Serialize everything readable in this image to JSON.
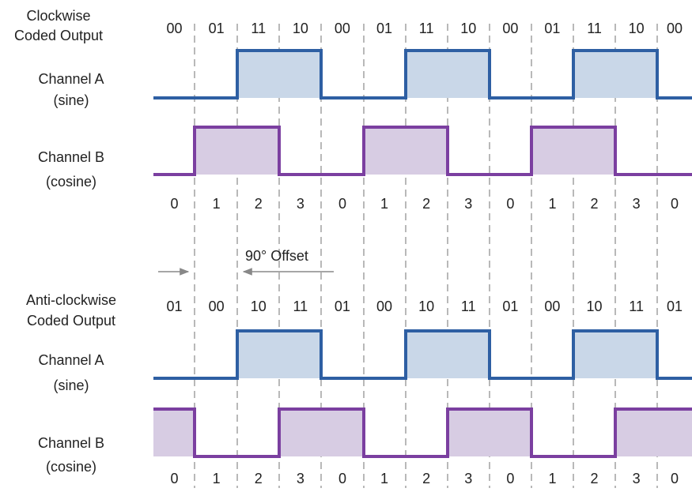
{
  "sections": [
    {
      "title": [
        "Clockwise",
        "Coded Output"
      ],
      "codes": [
        "00",
        "01",
        "11",
        "10",
        "00",
        "01",
        "11",
        "10",
        "00",
        "01",
        "11",
        "10",
        "00"
      ],
      "channel_a": {
        "label": [
          "Channel A",
          "(sine)"
        ],
        "pattern": [
          0,
          0,
          1,
          1,
          0,
          0,
          1,
          1,
          0,
          0,
          1,
          1,
          0
        ]
      },
      "channel_b": {
        "label": [
          "Channel B",
          "(cosine)"
        ],
        "pattern": [
          0,
          1,
          1,
          0,
          0,
          1,
          1,
          0,
          0,
          1,
          1,
          0,
          0
        ]
      },
      "steps": [
        "0",
        "1",
        "2",
        "3",
        "0",
        "1",
        "2",
        "3",
        "0",
        "1",
        "2",
        "3",
        "0"
      ]
    },
    {
      "title": [
        "Anti-clockwise",
        "Coded Output"
      ],
      "codes": [
        "01",
        "00",
        "10",
        "11",
        "01",
        "00",
        "10",
        "11",
        "01",
        "00",
        "10",
        "11",
        "01"
      ],
      "channel_a": {
        "label": [
          "Channel A",
          "(sine)"
        ],
        "pattern": [
          0,
          0,
          1,
          1,
          0,
          0,
          1,
          1,
          0,
          0,
          1,
          1,
          0
        ]
      },
      "channel_b": {
        "label": [
          "Channel B",
          "(cosine)"
        ],
        "pattern": [
          1,
          0,
          0,
          1,
          1,
          0,
          0,
          1,
          1,
          0,
          0,
          1,
          1
        ]
      },
      "steps": [
        "0",
        "1",
        "2",
        "3",
        "0",
        "1",
        "2",
        "3",
        "0",
        "1",
        "2",
        "3",
        "0"
      ]
    }
  ],
  "offset_label": "90° Offset",
  "colors": {
    "channel_a_stroke": "#2e5fa3",
    "channel_a_fill": "#c9d7e8",
    "channel_b_stroke": "#7b3fa0",
    "channel_b_fill": "#d7cce3",
    "grid": "#8a8a8a",
    "arrow": "#888888"
  }
}
